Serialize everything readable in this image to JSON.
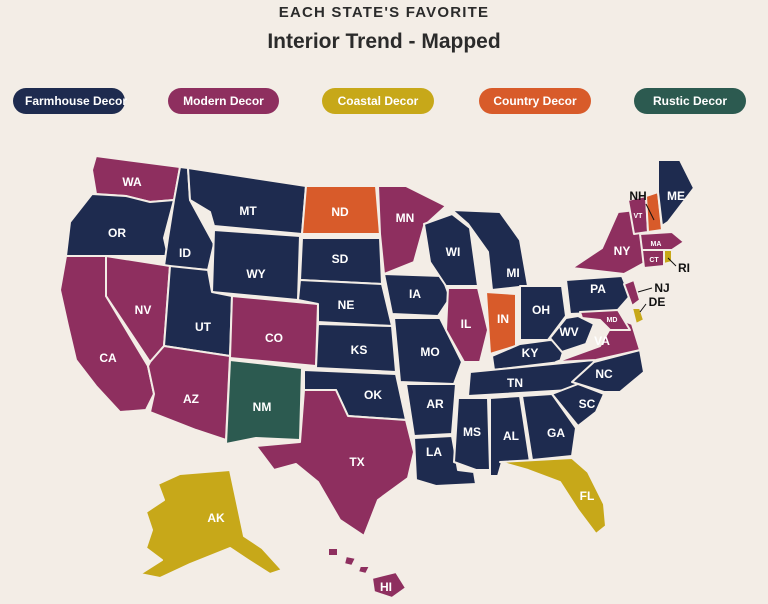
{
  "header": {
    "eyebrow": "EACH STATE'S FAVORITE",
    "title": "Interior Trend - Mapped"
  },
  "legend": [
    {
      "key": "farmhouse",
      "label": "Farmhouse Decor",
      "color": "#1e2b4f"
    },
    {
      "key": "modern",
      "label": "Modern Decor",
      "color": "#8e2f5f"
    },
    {
      "key": "coastal",
      "label": "Coastal Decor",
      "color": "#c7a819"
    },
    {
      "key": "country",
      "label": "Country Decor",
      "color": "#d85b2a"
    },
    {
      "key": "rustic",
      "label": "Rustic Decor",
      "color": "#2c5a50"
    }
  ],
  "states": [
    {
      "abbr": "WA",
      "style": "modern"
    },
    {
      "abbr": "OR",
      "style": "farmhouse"
    },
    {
      "abbr": "CA",
      "style": "modern"
    },
    {
      "abbr": "ID",
      "style": "farmhouse"
    },
    {
      "abbr": "NV",
      "style": "modern"
    },
    {
      "abbr": "MT",
      "style": "farmhouse"
    },
    {
      "abbr": "WY",
      "style": "farmhouse"
    },
    {
      "abbr": "UT",
      "style": "farmhouse"
    },
    {
      "abbr": "AZ",
      "style": "modern"
    },
    {
      "abbr": "CO",
      "style": "modern"
    },
    {
      "abbr": "NM",
      "style": "rustic"
    },
    {
      "abbr": "ND",
      "style": "country"
    },
    {
      "abbr": "SD",
      "style": "farmhouse"
    },
    {
      "abbr": "NE",
      "style": "farmhouse"
    },
    {
      "abbr": "KS",
      "style": "farmhouse"
    },
    {
      "abbr": "OK",
      "style": "farmhouse"
    },
    {
      "abbr": "TX",
      "style": "modern"
    },
    {
      "abbr": "MN",
      "style": "modern"
    },
    {
      "abbr": "IA",
      "style": "farmhouse"
    },
    {
      "abbr": "MO",
      "style": "farmhouse"
    },
    {
      "abbr": "AR",
      "style": "farmhouse"
    },
    {
      "abbr": "LA",
      "style": "farmhouse"
    },
    {
      "abbr": "WI",
      "style": "farmhouse"
    },
    {
      "abbr": "IL",
      "style": "modern"
    },
    {
      "abbr": "MI",
      "style": "farmhouse"
    },
    {
      "abbr": "IN",
      "style": "country"
    },
    {
      "abbr": "OH",
      "style": "farmhouse"
    },
    {
      "abbr": "KY",
      "style": "farmhouse"
    },
    {
      "abbr": "TN",
      "style": "farmhouse"
    },
    {
      "abbr": "MS",
      "style": "farmhouse"
    },
    {
      "abbr": "AL",
      "style": "farmhouse"
    },
    {
      "abbr": "GA",
      "style": "farmhouse"
    },
    {
      "abbr": "FL",
      "style": "coastal"
    },
    {
      "abbr": "SC",
      "style": "farmhouse"
    },
    {
      "abbr": "NC",
      "style": "farmhouse"
    },
    {
      "abbr": "VA",
      "style": "modern"
    },
    {
      "abbr": "WV",
      "style": "farmhouse"
    },
    {
      "abbr": "PA",
      "style": "farmhouse"
    },
    {
      "abbr": "NY",
      "style": "modern"
    },
    {
      "abbr": "MD",
      "style": "modern"
    },
    {
      "abbr": "DE",
      "style": "coastal"
    },
    {
      "abbr": "NJ",
      "style": "modern"
    },
    {
      "abbr": "CT",
      "style": "modern"
    },
    {
      "abbr": "RI",
      "style": "coastal"
    },
    {
      "abbr": "MA",
      "style": "modern"
    },
    {
      "abbr": "VT",
      "style": "modern"
    },
    {
      "abbr": "NH",
      "style": "country"
    },
    {
      "abbr": "ME",
      "style": "farmhouse"
    },
    {
      "abbr": "AK",
      "style": "coastal"
    },
    {
      "abbr": "HI",
      "style": "modern"
    }
  ]
}
